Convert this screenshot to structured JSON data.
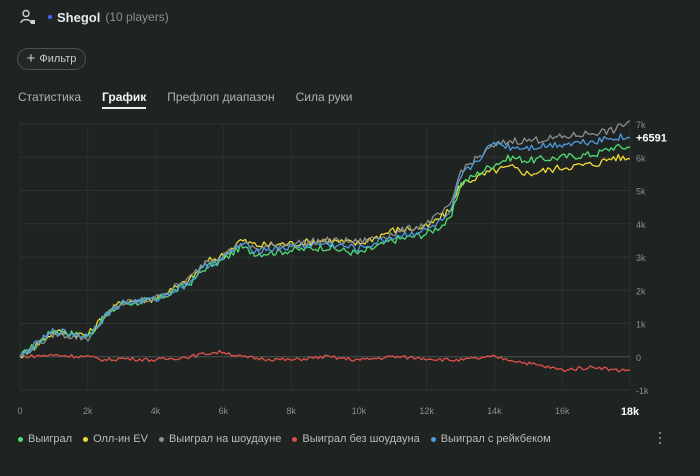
{
  "header": {
    "player_name": "Shegol",
    "player_count": "(10 players)",
    "accent": "#3f6bff"
  },
  "filter": {
    "label": "Фильтр"
  },
  "tabs": [
    {
      "label": "Статистика",
      "active": false
    },
    {
      "label": "График",
      "active": true
    },
    {
      "label": "Префлоп диапазон",
      "active": false
    },
    {
      "label": "Сила руки",
      "active": false
    }
  ],
  "chart_data": {
    "type": "line",
    "xlabel": "",
    "ylabel": "",
    "xlim": [
      0,
      18000
    ],
    "ylim": [
      -1000,
      7000
    ],
    "x_tick_labels": [
      "0",
      "2k",
      "4k",
      "6k",
      "8k",
      "10k",
      "12k",
      "14k",
      "16k",
      "18k"
    ],
    "y_tick_labels": [
      "-1k",
      "0",
      "1k",
      "2k",
      "3k",
      "4k",
      "5k",
      "6k",
      "7k"
    ],
    "x_max_label": "18k",
    "end_value_label": "+6591",
    "grid": true,
    "legend": "bottom",
    "x": [
      0,
      1000,
      2000,
      2500,
      3000,
      4000,
      5000,
      5500,
      6000,
      6500,
      7000,
      8000,
      9000,
      10000,
      11000,
      12000,
      12700,
      13000,
      14000,
      14500,
      15000,
      16000,
      17000,
      17500,
      18000
    ],
    "series": [
      {
        "name": "Выиграл",
        "color": "#4fdc72",
        "values": [
          0,
          800,
          600,
          1200,
          1600,
          1700,
          2200,
          2700,
          2900,
          3300,
          3100,
          3200,
          3300,
          3100,
          3500,
          3700,
          4100,
          5200,
          5800,
          6000,
          5900,
          6000,
          6100,
          6300,
          6300
        ]
      },
      {
        "name": "Олл-ин EV",
        "color": "#f0dc33",
        "values": [
          0,
          750,
          650,
          1250,
          1650,
          1750,
          2300,
          2850,
          3050,
          3500,
          3350,
          3400,
          3500,
          3400,
          3800,
          3900,
          4400,
          5200,
          5600,
          5700,
          5500,
          5700,
          5800,
          6000,
          5950
        ]
      },
      {
        "name": "Выиграл на шоудауне",
        "color": "#8c8f8d",
        "values": [
          0,
          700,
          550,
          1200,
          1600,
          1750,
          2350,
          2900,
          3050,
          3400,
          3250,
          3400,
          3500,
          3450,
          3700,
          4000,
          4500,
          5600,
          6350,
          6500,
          6500,
          6600,
          6750,
          6800,
          7100
        ]
      },
      {
        "name": "Выиграл без шоудауна",
        "color": "#e0504a",
        "values": [
          0,
          50,
          0,
          -100,
          -50,
          -100,
          0,
          100,
          150,
          0,
          -50,
          -100,
          0,
          -100,
          0,
          -50,
          -100,
          -100,
          0,
          -100,
          -200,
          -400,
          -300,
          -400,
          -400
        ]
      },
      {
        "name": "Выиграл с рейкбеком",
        "color": "#4f9bde",
        "values": [
          0,
          780,
          620,
          1220,
          1620,
          1720,
          2230,
          2750,
          2950,
          3380,
          3200,
          3300,
          3400,
          3250,
          3600,
          3800,
          4250,
          5400,
          6450,
          6300,
          6300,
          6400,
          6500,
          6600,
          6591
        ]
      }
    ]
  },
  "more_icon": "vertical-dots-icon"
}
